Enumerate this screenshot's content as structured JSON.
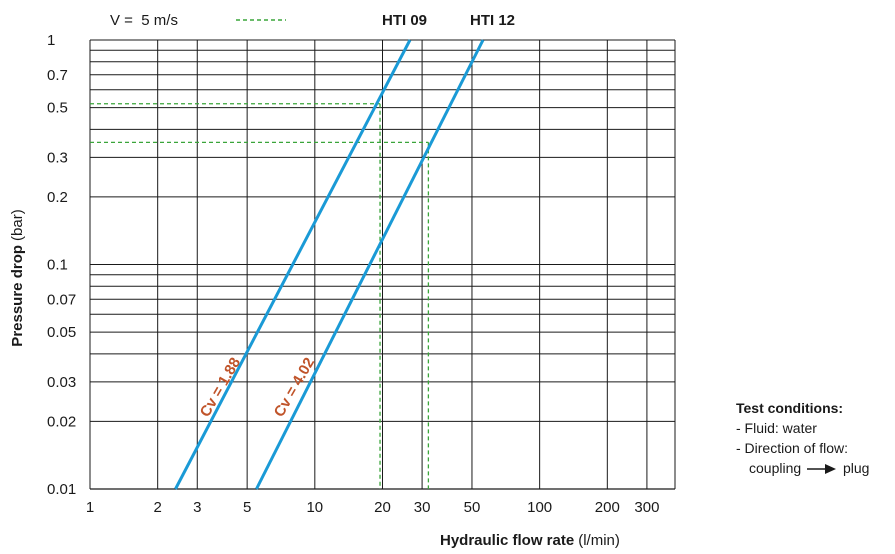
{
  "chart_data": {
    "type": "line",
    "x_scale": "log",
    "y_scale": "log",
    "xlim": [
      1,
      400
    ],
    "ylim": [
      0.01,
      1
    ],
    "x_ticks": [
      1,
      2,
      3,
      5,
      10,
      20,
      30,
      50,
      100,
      200,
      300
    ],
    "x_tick_labels": [
      "1",
      "2",
      "3",
      "5",
      "10",
      "20",
      "30",
      "50",
      "100",
      "200",
      "300"
    ],
    "y_ticks": [
      0.01,
      0.02,
      0.03,
      0.05,
      0.07,
      0.1,
      0.2,
      0.3,
      0.5,
      0.7,
      1
    ],
    "y_tick_labels": [
      "0.01",
      "0.02",
      "0.03",
      "0.05",
      "0.07",
      "0.1",
      "0.2",
      "0.3",
      "0.5",
      "0.7",
      "1"
    ],
    "grid": true,
    "xlabel_bold": "Hydraulic flow rate",
    "xlabel_unit": "(l/min)",
    "ylabel_bold": "Pressure drop",
    "ylabel_unit": "(bar)",
    "legend_velocity": "V =  5 m/s",
    "line_color": "#1a9ad6",
    "dash_color": "#3aa53a",
    "label_color": "#c0542a",
    "series": [
      {
        "name": "HTI 09",
        "curve_label": "Cv = 1.88",
        "x": [
          2.4,
          26.5
        ],
        "y": [
          0.01,
          1.0
        ]
      },
      {
        "name": "HTI 12",
        "curve_label": "Cv = 4.02",
        "x": [
          5.5,
          56
        ],
        "y": [
          0.01,
          1.0
        ]
      }
    ],
    "velocity_markers": [
      {
        "x": 19.5,
        "y": 0.52
      },
      {
        "x": 32,
        "y": 0.35
      }
    ]
  },
  "test_conditions": {
    "title": "Test conditions:",
    "fluid": "- Fluid: water",
    "direction": "- Direction of flow:",
    "direction_from": "coupling",
    "direction_to": "plug"
  }
}
